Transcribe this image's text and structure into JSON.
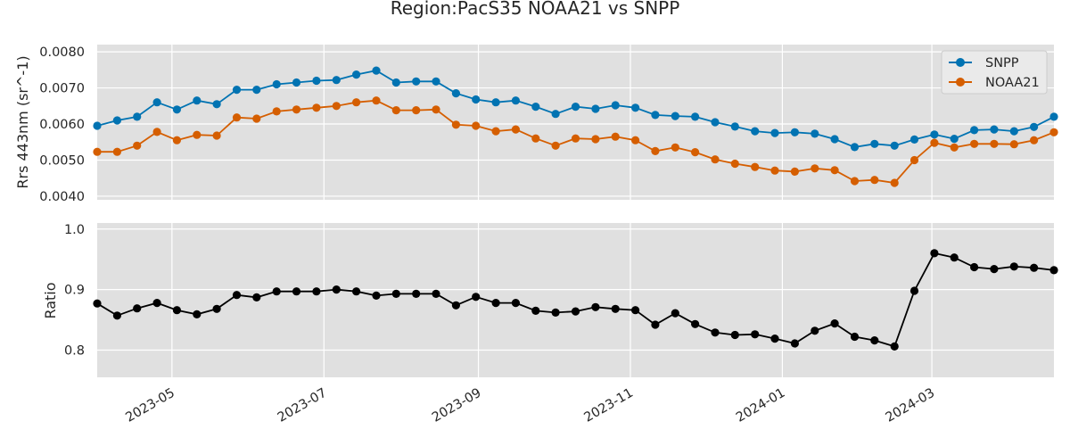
{
  "chart_data": {
    "type": "line",
    "title": "Region:PacS35 NOAA21 vs SNPP",
    "x": [
      "2023-04-01",
      "2023-04-09",
      "2023-04-17",
      "2023-04-25",
      "2023-05-03",
      "2023-05-11",
      "2023-05-19",
      "2023-05-27",
      "2023-06-04",
      "2023-06-12",
      "2023-06-20",
      "2023-06-28",
      "2023-07-06",
      "2023-07-14",
      "2023-07-22",
      "2023-07-30",
      "2023-08-07",
      "2023-08-15",
      "2023-08-23",
      "2023-08-31",
      "2023-09-08",
      "2023-09-16",
      "2023-09-24",
      "2023-10-02",
      "2023-10-10",
      "2023-10-18",
      "2023-10-26",
      "2023-11-03",
      "2023-11-11",
      "2023-11-19",
      "2023-11-27",
      "2023-12-05",
      "2023-12-13",
      "2023-12-21",
      "2023-12-29",
      "2024-01-06",
      "2024-01-14",
      "2024-01-22",
      "2024-01-30",
      "2024-02-07",
      "2024-02-15",
      "2024-02-23",
      "2024-03-02",
      "2024-03-10",
      "2024-03-18",
      "2024-03-26",
      "2024-04-03",
      "2024-04-11",
      "2024-04-19"
    ],
    "x_ticks": [
      "2023-05",
      "2023-07",
      "2023-09",
      "2023-11",
      "2024-01",
      "2024-03"
    ],
    "panels": [
      {
        "ylabel": "Rrs 443nm (sr^-1)",
        "ylim": [
          0.0039,
          0.0082
        ],
        "y_ticks": [
          0.004,
          0.005,
          0.006,
          0.007,
          0.008
        ],
        "y_tick_labels": [
          "0.0040",
          "0.0050",
          "0.0060",
          "0.0070",
          "0.0080"
        ],
        "legend_position": "top-right",
        "series": [
          {
            "name": "SNPP",
            "color": "#0173b2",
            "values": [
              0.00595,
              0.0061,
              0.0062,
              0.0066,
              0.0064,
              0.00665,
              0.00655,
              0.00695,
              0.00695,
              0.0071,
              0.00715,
              0.0072,
              0.00722,
              0.00737,
              0.00748,
              0.00715,
              0.00718,
              0.00718,
              0.00685,
              0.00668,
              0.0066,
              0.00665,
              0.00648,
              0.00628,
              0.00648,
              0.00642,
              0.00652,
              0.00645,
              0.00625,
              0.00622,
              0.0062,
              0.00605,
              0.00593,
              0.0058,
              0.00575,
              0.00577,
              0.00573,
              0.00558,
              0.00536,
              0.00545,
              0.0054,
              0.00557,
              0.00571,
              0.00559,
              0.00583,
              0.00585,
              0.0058,
              0.00592,
              0.0062
            ]
          },
          {
            "name": "NOAA21",
            "color": "#d55e00",
            "values": [
              0.00523,
              0.00523,
              0.0054,
              0.00578,
              0.00555,
              0.0057,
              0.00568,
              0.00618,
              0.00615,
              0.00635,
              0.0064,
              0.00645,
              0.0065,
              0.0066,
              0.00665,
              0.00638,
              0.00638,
              0.0064,
              0.00598,
              0.00595,
              0.0058,
              0.00585,
              0.0056,
              0.0054,
              0.0056,
              0.00558,
              0.00565,
              0.00555,
              0.00525,
              0.00535,
              0.00522,
              0.00502,
              0.0049,
              0.00481,
              0.00471,
              0.00468,
              0.00477,
              0.00472,
              0.00442,
              0.00445,
              0.00437,
              0.005,
              0.00548,
              0.00535,
              0.00545,
              0.00545,
              0.00544,
              0.00555,
              0.00577
            ]
          }
        ]
      },
      {
        "ylabel": "Ratio",
        "ylim": [
          0.755,
          1.01
        ],
        "y_ticks": [
          0.8,
          0.9,
          1.0
        ],
        "y_tick_labels": [
          "0.8",
          "0.9",
          "1.0"
        ],
        "series": [
          {
            "name": "",
            "color": "#000000",
            "values": [
              0.877,
              0.857,
              0.869,
              0.878,
              0.866,
              0.859,
              0.868,
              0.891,
              0.887,
              0.897,
              0.897,
              0.897,
              0.9,
              0.897,
              0.89,
              0.893,
              0.893,
              0.893,
              0.874,
              0.888,
              0.878,
              0.878,
              0.865,
              0.862,
              0.864,
              0.871,
              0.868,
              0.866,
              0.842,
              0.861,
              0.843,
              0.829,
              0.825,
              0.826,
              0.819,
              0.811,
              0.832,
              0.844,
              0.822,
              0.816,
              0.806,
              0.898,
              0.96,
              0.953,
              0.937,
              0.934,
              0.938,
              0.936,
              0.932
            ]
          }
        ]
      }
    ],
    "grid": true
  }
}
